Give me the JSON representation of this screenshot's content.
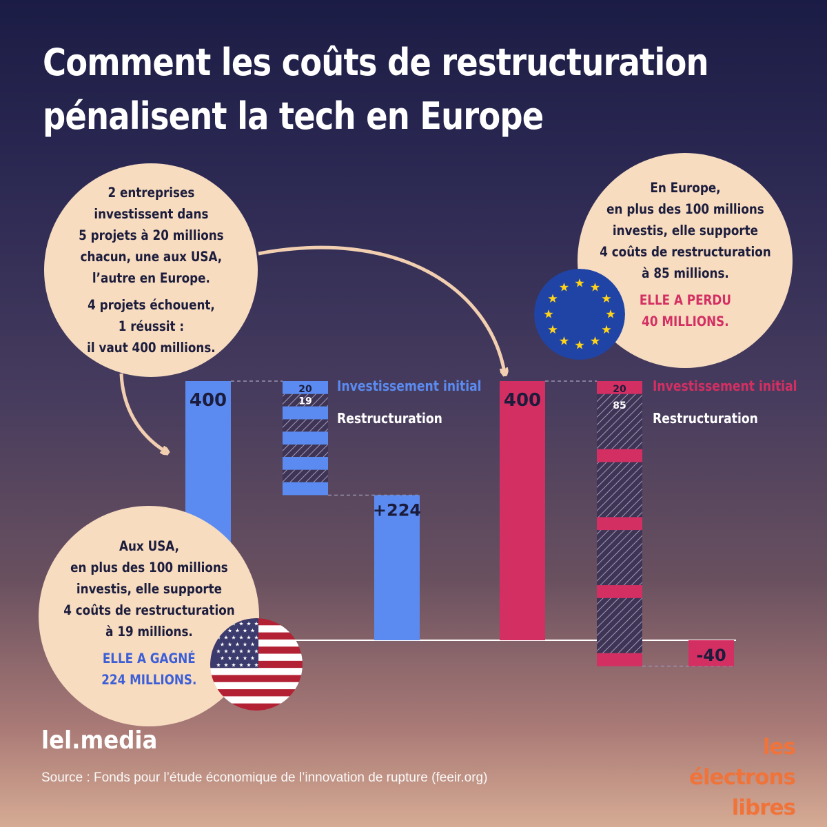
{
  "title": {
    "line1": "Comment les coûts de restructuration",
    "line2": "pénalisent la tech en Europe"
  },
  "bubbles": {
    "intro": {
      "p1": "2 entreprises\ninvestissent dans\n5 projets à 20 millions\nchacun, une aux USA,\nl’autre en Europe.",
      "p2": "4 projets échouent,\n1 réussit :\nil vaut 400 millions."
    },
    "eu": {
      "p1": "En Europe,\nen plus des 100 millions\ninvestis, elle supporte\n4 coûts de restructuration\nà 85 millions.",
      "highlight": "ELLE A PERDU\n40 MILLIONS."
    },
    "usa": {
      "p1": "Aux USA,\nen plus des 100 millions\ninvestis, elle supporte\n4 coûts de restructuration\nà 19 millions.",
      "highlight": "ELLE A GAGNÉ\n224 MILLIONS."
    }
  },
  "colors": {
    "usa": "#5b8bf0",
    "eu": "#d42f62",
    "bubble": "#f7dcc0",
    "text_dark": "#1c1c3c",
    "eu_flag": "#1f44a6",
    "eu_star": "#ffd31a"
  },
  "icons": {
    "eu_flag": "eu-flag-icon",
    "us_flag": "us-flag-icon",
    "arrows": "curved-arrow-icon"
  },
  "chart_data": [
    {
      "type": "waterfall",
      "name": "usa",
      "labels": [
        "400",
        "20",
        "19",
        "+224"
      ],
      "success_value": 400,
      "investment_per_project": 20,
      "restructuring_cost_per_failure": 19,
      "projects": 5,
      "failures": 4,
      "result": 224,
      "result_label": "+224",
      "legend": [
        "Investissement initial",
        "Restructuration"
      ]
    },
    {
      "type": "waterfall",
      "name": "europe",
      "labels": [
        "400",
        "20",
        "85",
        "-40"
      ],
      "success_value": 400,
      "investment_per_project": 20,
      "restructuring_cost_per_failure": 85,
      "projects": 5,
      "failures": 4,
      "result": -40,
      "result_label": "-40",
      "legend": [
        "Investissement initial",
        "Restructuration"
      ]
    }
  ],
  "footer": {
    "brand": "lel.media",
    "source": "Source : Fonds pour l’étude économique de l’innovation de rupture (feeir.org)",
    "logo_line1": "les électrons",
    "logo_line2": "libres"
  }
}
